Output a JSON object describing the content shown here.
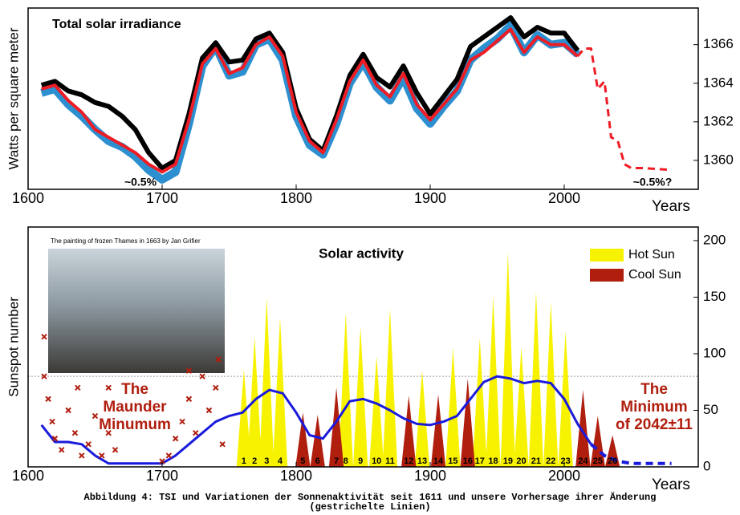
{
  "chart_data": [
    {
      "type": "line",
      "title": "Total solar irradiance",
      "xlabel": "Years",
      "ylabel": "Watts per square meter",
      "xlim": [
        1600,
        2100
      ],
      "ylim": [
        1358.5,
        1367.9
      ],
      "xticks": [
        1600,
        1700,
        1800,
        1900,
        2000
      ],
      "yticks": [
        1360,
        1362,
        1364,
        1366
      ],
      "x": [
        1610,
        1620,
        1630,
        1640,
        1650,
        1660,
        1670,
        1680,
        1690,
        1700,
        1710,
        1720,
        1730,
        1740,
        1750,
        1760,
        1770,
        1780,
        1790,
        1800,
        1810,
        1820,
        1830,
        1840,
        1850,
        1860,
        1870,
        1880,
        1890,
        1900,
        1910,
        1920,
        1930,
        1940,
        1950,
        1960,
        1970,
        1980,
        1990,
        2000,
        2010
      ],
      "series": [
        {
          "color": "#2b8fd0",
          "values": [
            1363.5,
            1363.7,
            1362.9,
            1362.3,
            1361.6,
            1361.0,
            1360.7,
            1360.2,
            1359.5,
            1359.0,
            1359.4,
            1361.9,
            1364.9,
            1365.9,
            1364.4,
            1364.6,
            1366.0,
            1366.3,
            1365.2,
            1362.3,
            1360.8,
            1360.3,
            1361.9,
            1364.0,
            1365.1,
            1363.8,
            1363.1,
            1364.3,
            1362.7,
            1361.9,
            1362.8,
            1363.6,
            1365.2,
            1365.8,
            1366.3,
            1367.0,
            1365.6,
            1366.5,
            1366.0,
            1366.1,
            1365.5
          ]
        },
        {
          "color": "#000000",
          "values": [
            1363.9,
            1364.1,
            1363.6,
            1363.4,
            1363.0,
            1362.8,
            1362.3,
            1361.6,
            1360.4,
            1359.6,
            1360.0,
            1362.4,
            1365.3,
            1366.1,
            1365.1,
            1365.2,
            1366.3,
            1366.6,
            1365.6,
            1362.7,
            1361.1,
            1360.5,
            1362.3,
            1364.4,
            1365.5,
            1364.3,
            1363.8,
            1364.9,
            1363.5,
            1362.4,
            1363.3,
            1364.2,
            1365.9,
            1366.4,
            1366.9,
            1367.4,
            1366.4,
            1366.9,
            1366.6,
            1366.6,
            1365.7
          ]
        },
        {
          "color": "#ee1c25",
          "values": [
            1363.7,
            1363.9,
            1363.1,
            1362.5,
            1361.6,
            1361.2,
            1360.8,
            1360.4,
            1359.8,
            1359.4,
            1359.8,
            1362.1,
            1365.0,
            1365.8,
            1364.5,
            1364.8,
            1366.0,
            1366.4,
            1365.4,
            1362.5,
            1361.0,
            1360.4,
            1362.1,
            1364.1,
            1365.2,
            1363.9,
            1363.3,
            1364.5,
            1362.9,
            1362.1,
            1362.9,
            1363.7,
            1365.2,
            1365.6,
            1366.2,
            1366.8,
            1365.6,
            1366.4,
            1366.0,
            1366.0,
            1365.4
          ]
        },
        {
          "color": "#ee1c25",
          "dashed": true,
          "x": [
            2010,
            2015,
            2020,
            2025,
            2030,
            2035,
            2040,
            2045,
            2050,
            2060,
            2080
          ],
          "values": [
            1365.4,
            1365.8,
            1365.8,
            1363.7,
            1364.1,
            1361.2,
            1361.0,
            1359.8,
            1359.6,
            1359.6,
            1359.5
          ]
        }
      ],
      "annotations": [
        {
          "text": "~0.5%"
        },
        {
          "text": "~0.5%?"
        }
      ]
    },
    {
      "type": "area",
      "title": "Solar activity",
      "xlabel": "Years",
      "ylabel": "Sunspot number",
      "xlim": [
        1600,
        2100
      ],
      "ylim": [
        0,
        212
      ],
      "xticks": [
        1600,
        1700,
        1800,
        1900,
        2000
      ],
      "yticks": [
        0,
        50,
        100,
        150,
        200
      ],
      "legend": "upper right",
      "reference_line": 80,
      "series": [
        {
          "name": "Hot Sun",
          "type": "area",
          "color": "#f7f200",
          "labels": [
            "1",
            "2",
            "3",
            "4",
            "8",
            "9",
            "10",
            "11",
            "13",
            "15",
            "17",
            "18",
            "19",
            "20",
            "21",
            "22",
            "23"
          ],
          "x": [
            1761,
            1769,
            1778,
            1788,
            1837,
            1848,
            1860,
            1870,
            1894,
            1917,
            1937,
            1947,
            1958,
            1968,
            1979,
            1990,
            2001
          ],
          "values": [
            86,
            115,
            150,
            132,
            136,
            124,
            98,
            140,
            85,
            105,
            114,
            151,
            190,
            106,
            155,
            146,
            120
          ]
        },
        {
          "name": "Cool Sun",
          "type": "area",
          "color": "#b01e0e",
          "labels": [
            "5",
            "6",
            "7",
            "12",
            "14",
            "16",
            "24",
            "25",
            "26"
          ],
          "x": [
            1805,
            1816,
            1830,
            1884,
            1906,
            1928,
            2014,
            2025,
            2036
          ],
          "values": [
            48,
            46,
            70,
            63,
            64,
            78,
            68,
            45,
            28
          ]
        },
        {
          "type": "line",
          "color": "#1a1adc",
          "x": [
            1610,
            1620,
            1630,
            1640,
            1650,
            1660,
            1680,
            1700,
            1710,
            1720,
            1730,
            1740,
            1750,
            1760,
            1770,
            1780,
            1790,
            1800,
            1810,
            1820,
            1830,
            1840,
            1850,
            1860,
            1870,
            1880,
            1890,
            1900,
            1910,
            1920,
            1930,
            1940,
            1950,
            1960,
            1970,
            1980,
            1990,
            2000,
            2010,
            2020
          ],
          "values": [
            37,
            22,
            22,
            20,
            10,
            3,
            3,
            3,
            10,
            20,
            30,
            40,
            45,
            48,
            60,
            68,
            65,
            48,
            28,
            25,
            40,
            58,
            60,
            56,
            50,
            43,
            38,
            37,
            40,
            45,
            60,
            75,
            80,
            78,
            74,
            76,
            74,
            60,
            38,
            20
          ]
        },
        {
          "type": "line",
          "color": "#1a1adc",
          "dashed": true,
          "x": [
            2020,
            2030,
            2040,
            2050,
            2060,
            2080
          ],
          "values": [
            20,
            10,
            5,
            3,
            3,
            3
          ]
        },
        {
          "type": "scatter",
          "color": "#b01e0e",
          "x": [
            1612,
            1615,
            1618,
            1620,
            1625,
            1630,
            1635,
            1640,
            1645,
            1650,
            1655,
            1660,
            1665,
            1700,
            1705,
            1710,
            1715,
            1720,
            1725,
            1730,
            1735,
            1740,
            1745,
            1612,
            1637,
            1660,
            1720,
            1742
          ],
          "values": [
            80,
            60,
            40,
            25,
            15,
            50,
            30,
            10,
            20,
            45,
            10,
            30,
            15,
            5,
            10,
            25,
            40,
            60,
            30,
            80,
            50,
            70,
            20,
            115,
            70,
            70,
            85,
            95
          ]
        }
      ],
      "painting_caption": "The painting of frozen Thames in 1663 by Jan Grifier",
      "annotations": [
        {
          "text": [
            "The",
            "Maunder",
            "Minumum"
          ]
        },
        {
          "text": [
            "The",
            "Minimum",
            "of 2042±11"
          ]
        }
      ]
    }
  ],
  "caption": [
    "Abbildung 4: TSI und Variationen der Sonnenaktivität seit 1611 und unsere Vorhersage ihrer Änderung",
    "(gestrichelte Linien)"
  ]
}
